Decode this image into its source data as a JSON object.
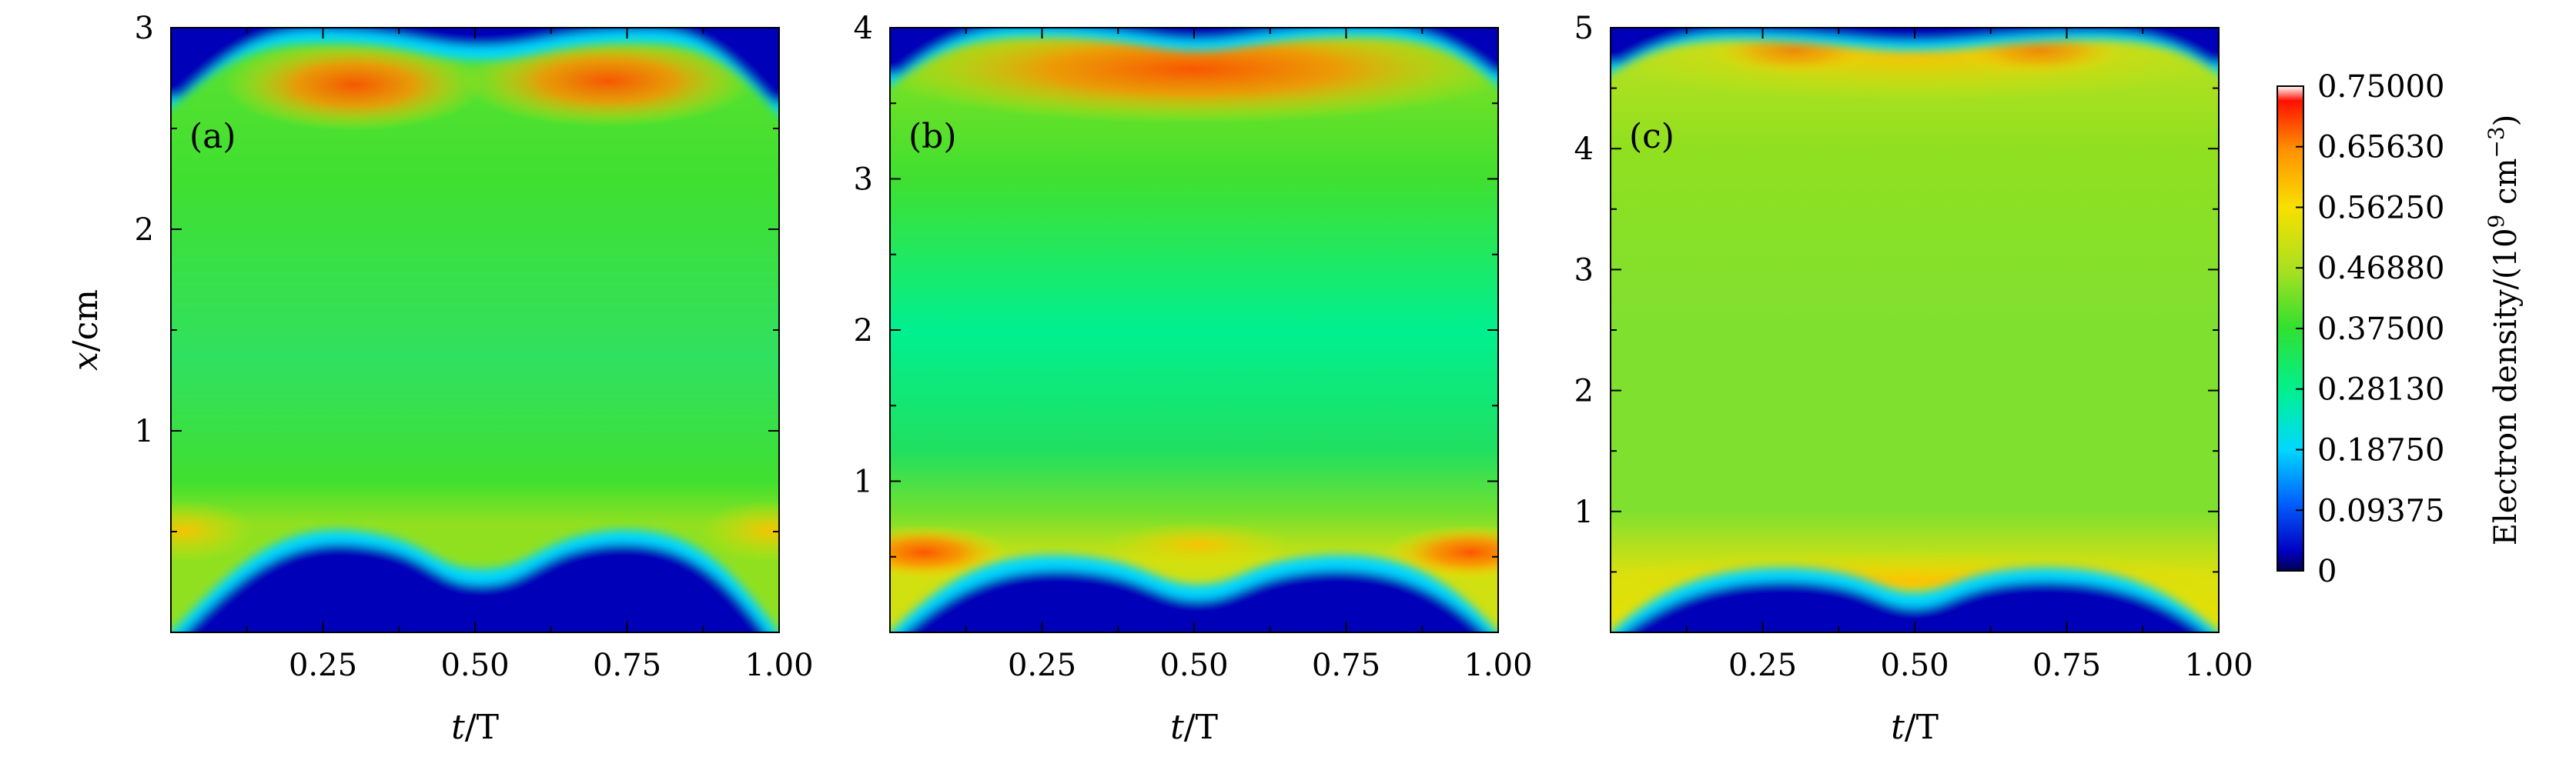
{
  "chart_data": [
    {
      "type": "heatmap",
      "panel_label": "(a)",
      "xlabel": "t/T",
      "ylabel": "x/cm",
      "xlim": [
        0,
        1
      ],
      "ylim": [
        0,
        3
      ],
      "xticks": [
        0.25,
        0.5,
        0.75,
        1.0
      ],
      "xtick_labels": [
        "0.25",
        "0.50",
        "0.75",
        "1.00"
      ],
      "yticks": [
        1,
        2,
        3
      ],
      "ytick_labels": [
        "1",
        "2",
        "3"
      ],
      "low_density_boundary": {
        "t": [
          0,
          0.3,
          0.5,
          0.72,
          1.0
        ],
        "x": [
          0.0,
          0.55,
          0.38,
          0.55,
          0.0
        ]
      },
      "high_density_boundary": {
        "t": [
          0,
          0.3,
          0.5,
          0.72,
          1.0
        ],
        "x": [
          3.0,
          2.62,
          2.86,
          2.62,
          3.0
        ]
      },
      "description_values": {
        "bulk_density": 0.375,
        "peak_density": 0.656
      }
    },
    {
      "type": "heatmap",
      "panel_label": "(b)",
      "xlabel": "t/T",
      "ylabel": "",
      "xlim": [
        0,
        1
      ],
      "ylim": [
        0,
        4
      ],
      "xticks": [
        0.25,
        0.5,
        0.75,
        1.0
      ],
      "xtick_labels": [
        "0.25",
        "0.50",
        "0.75",
        "1.00"
      ],
      "yticks": [
        1,
        2,
        3,
        4
      ],
      "ytick_labels": [
        "1",
        "2",
        "3",
        "4"
      ],
      "low_density_boundary": {
        "t": [
          0,
          0.3,
          0.5,
          0.72,
          1.0
        ],
        "x": [
          0.0,
          0.5,
          0.38,
          0.5,
          0.0
        ]
      },
      "high_density_boundary": {
        "t": [
          0,
          0.3,
          0.5,
          0.72,
          1.0
        ],
        "x": [
          4.0,
          3.75,
          3.88,
          3.75,
          4.0
        ]
      },
      "description_values": {
        "bulk_density": 0.3,
        "peak_density": 0.656
      }
    },
    {
      "type": "heatmap",
      "panel_label": "(c)",
      "xlabel": "t/T",
      "ylabel": "",
      "xlim": [
        0,
        1
      ],
      "ylim": [
        0,
        5
      ],
      "xticks": [
        0.25,
        0.5,
        0.75,
        1.0
      ],
      "xtick_labels": [
        "0.25",
        "0.50",
        "0.75",
        "1.00"
      ],
      "yticks": [
        1,
        2,
        3,
        4,
        5
      ],
      "ytick_labels": [
        "1",
        "2",
        "3",
        "4",
        "5"
      ],
      "low_density_boundary": {
        "t": [
          0,
          0.3,
          0.5,
          0.72,
          1.0
        ],
        "x": [
          0.0,
          0.5,
          0.35,
          0.5,
          0.0
        ]
      },
      "high_density_boundary": {
        "t": [
          0,
          0.3,
          0.5,
          0.72,
          1.0
        ],
        "x": [
          5.0,
          4.75,
          4.88,
          4.75,
          5.0
        ]
      },
      "description_values": {
        "bulk_density": 0.44,
        "peak_density": 0.6
      }
    }
  ],
  "colorbar": {
    "label_prefix": "Electron density/(10",
    "label_exp": "9",
    "label_mid": " cm",
    "label_exp2": "−3",
    "label_suffix": ")",
    "range": [
      0,
      0.75
    ],
    "tick_values": [
      0.75,
      0.6563,
      0.5625,
      0.4688,
      0.375,
      0.2813,
      0.1875,
      0.09375,
      0
    ],
    "tick_labels": [
      "0.75000",
      "0.65630",
      "0.56250",
      "0.46880",
      "0.37500",
      "0.28130",
      "0.18750",
      "0.09375",
      "0"
    ],
    "colors": [
      "#0000a8",
      "#0055ff",
      "#00d0ff",
      "#00f080",
      "#30e030",
      "#a0e020",
      "#f0e000",
      "#ffa000",
      "#ff3000",
      "#e80000"
    ]
  }
}
